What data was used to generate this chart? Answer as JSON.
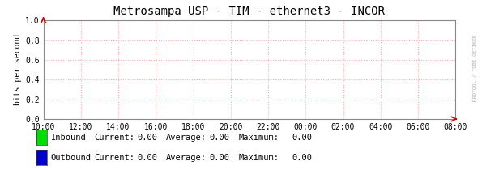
{
  "title": "Metrosampa USP - TIM - ethernet3 - INCOR",
  "ylabel": "bits per second",
  "ylim": [
    0,
    1.0
  ],
  "yticks": [
    0.0,
    0.2,
    0.4,
    0.6,
    0.8,
    1.0
  ],
  "xtick_labels": [
    "10:00",
    "12:00",
    "14:00",
    "16:00",
    "18:00",
    "20:00",
    "22:00",
    "00:00",
    "02:00",
    "04:00",
    "06:00",
    "08:00"
  ],
  "grid_color": "#ffaaaa",
  "grid_linestyle": ":",
  "background_color": "#ffffff",
  "plot_bg_color": "#ffffff",
  "title_fontsize": 10,
  "ylabel_fontsize": 7,
  "tick_fontsize": 7,
  "legend_fontsize": 7.5,
  "legend_items": [
    {
      "label": "Inbound",
      "color": "#00dd00"
    },
    {
      "label": "Outbound",
      "color": "#0000cc"
    }
  ],
  "legend_stats": [
    {
      "current": "0.00",
      "average": "0.00",
      "maximum": "0.00"
    },
    {
      "current": "0.00",
      "average": "0.00",
      "maximum": "0.00"
    }
  ],
  "arrow_color": "#cc0000",
  "watermark": "RRDTOOL / TOBI OETIKER",
  "watermark_color": "#aaaaaa",
  "border_color": "#888888"
}
